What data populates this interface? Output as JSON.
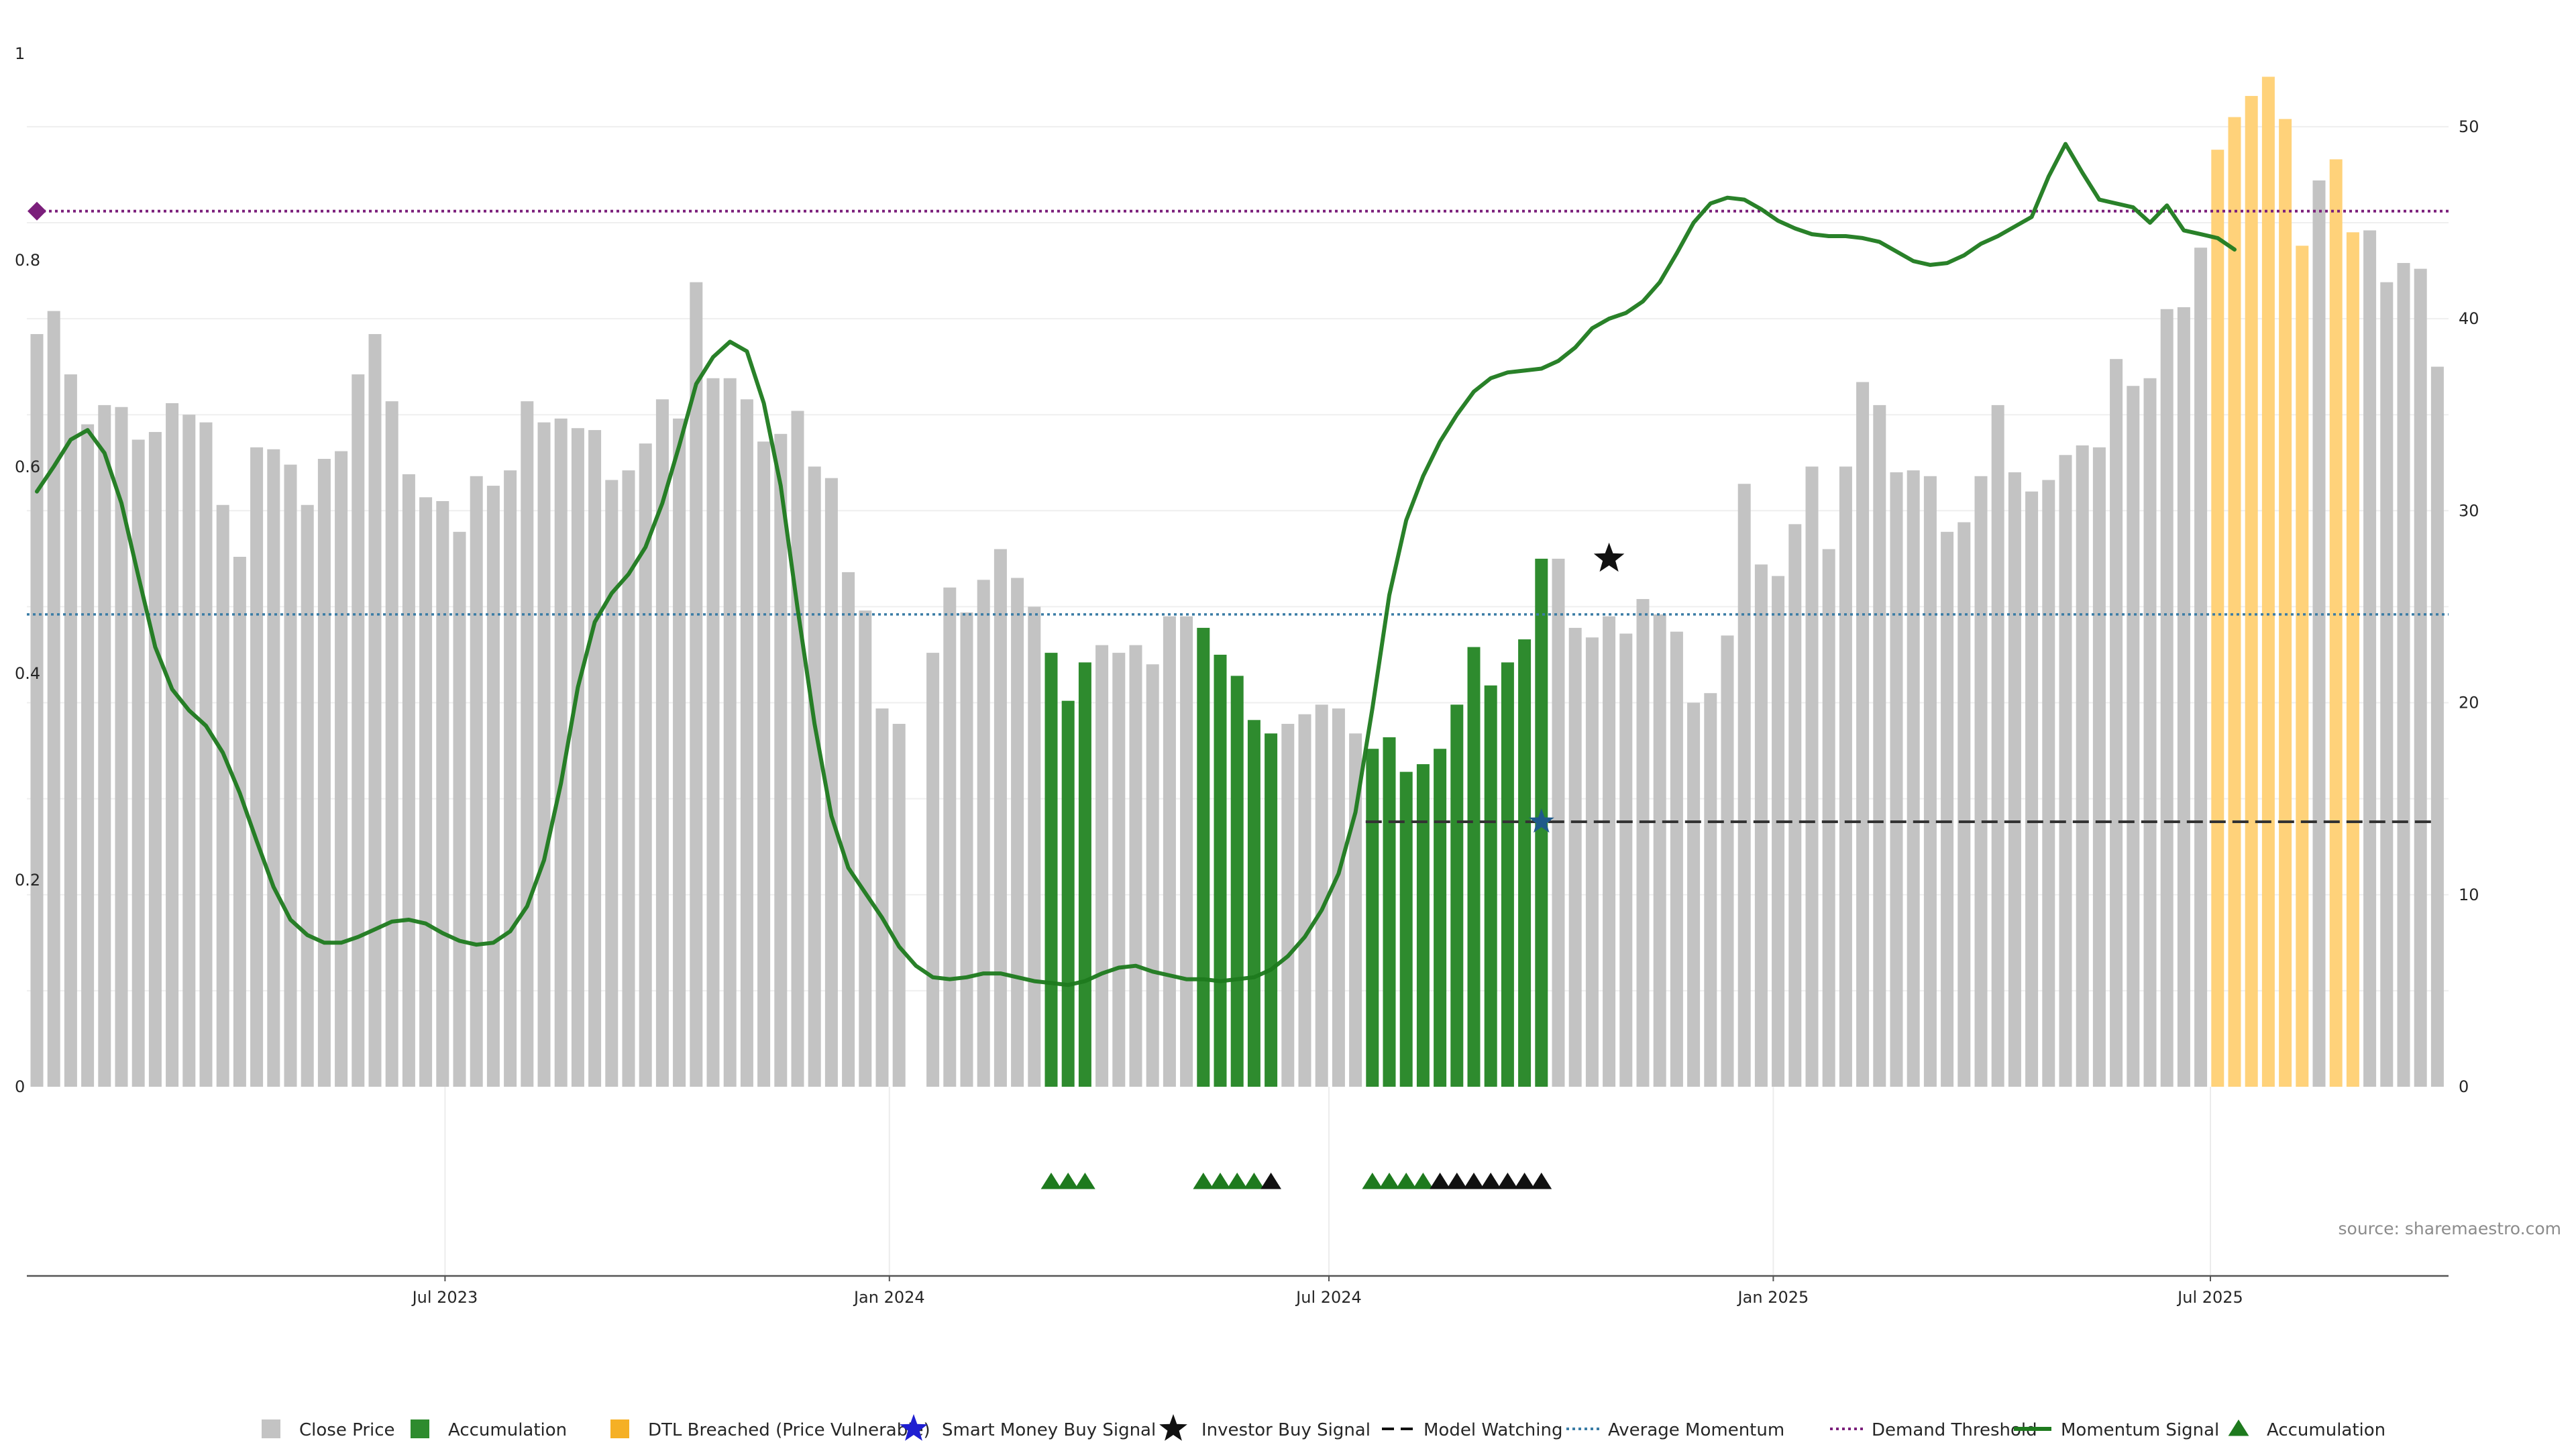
{
  "chart_data": {
    "type": "bar",
    "title": "",
    "xlabel": "",
    "ylabel": "",
    "left_axis": {
      "ylim": [
        0,
        1
      ],
      "ticks": [
        {
          "value": 0,
          "label": "0"
        },
        {
          "value": 0.2,
          "label": "0.2"
        },
        {
          "value": 0.4,
          "label": "0.4"
        },
        {
          "value": 0.6,
          "label": "0.6"
        },
        {
          "value": 0.8,
          "label": "0.8"
        },
        {
          "value": 1,
          "label": "1"
        }
      ]
    },
    "right_axis": {
      "ylim": [
        0,
        55.2
      ],
      "ticks": [
        {
          "value": 0,
          "label": "0"
        },
        {
          "value": 10,
          "label": "10"
        },
        {
          "value": 20,
          "label": "20"
        },
        {
          "value": 30,
          "label": "30"
        },
        {
          "value": 40,
          "label": "40"
        },
        {
          "value": 50,
          "label": "50"
        }
      ]
    },
    "x_axis": {
      "start": "2023-01-13",
      "interval": "weekly",
      "ticks": [
        "Jul 2023",
        "Jan 2024",
        "Jul 2024",
        "Jan 2025",
        "Jul 2025"
      ]
    },
    "grid": true,
    "legend_placement": "bottom-center",
    "colors": {
      "close": "#c3c3c3",
      "accumulation": "#2e8b2e",
      "dtl": "#ffd27a",
      "momentum": "#1e7a1e",
      "avg_momentum": "#3a7ca5",
      "demand": "#7b1f7b",
      "watching": "#333333",
      "investor": "#111111"
    },
    "series": [
      {
        "name": "Close Price",
        "values": [
          39.2,
          40.4,
          37.1,
          34.5,
          35.5,
          35.4,
          33.7,
          34.1,
          35.6,
          35.0,
          34.6,
          30.3,
          27.6,
          33.3,
          33.2,
          32.4,
          30.3,
          32.7,
          33.1,
          37.1,
          39.2,
          35.7,
          31.9,
          30.7,
          30.5,
          28.9,
          31.8,
          31.3,
          32.1,
          35.7,
          34.6,
          34.8,
          34.3,
          34.2,
          31.6,
          32.1,
          33.5,
          35.8,
          34.8,
          41.9,
          36.9,
          36.9,
          35.8,
          33.6,
          34.0,
          35.2,
          32.3,
          31.7,
          26.8,
          24.8,
          19.7,
          18.9,
          null,
          22.6,
          26.0,
          24.7,
          26.4,
          28.0,
          26.5,
          25.0,
          22.6,
          20.1,
          22.1,
          23.0,
          22.6,
          23.0,
          22.0,
          24.5,
          24.5,
          23.9,
          22.5,
          21.4,
          19.1,
          18.4,
          18.9,
          19.4,
          19.9,
          19.7,
          18.4,
          17.6,
          18.2,
          16.4,
          16.8,
          17.6,
          19.9,
          22.9,
          20.9,
          22.1,
          23.3,
          27.5,
          27.5,
          23.9,
          23.4,
          24.5,
          23.6,
          25.4,
          24.6,
          23.7,
          20.0,
          20.5,
          23.5,
          31.4,
          27.2,
          26.6,
          29.3,
          32.3,
          28.0,
          32.3,
          36.7,
          35.5,
          32.0,
          32.1,
          31.8,
          28.9,
          29.4,
          31.8,
          35.5,
          32.0,
          31.0,
          31.6,
          32.9,
          33.4,
          33.3,
          37.9,
          36.5,
          36.9,
          40.5,
          40.6,
          43.7,
          48.8,
          50.5,
          51.6,
          52.6,
          50.4,
          43.8,
          47.2,
          48.3,
          44.5,
          44.6,
          41.9,
          42.9,
          42.6,
          37.5
        ]
      },
      {
        "name": "Accumulation",
        "indices": [
          60,
          61,
          62,
          69,
          70,
          71,
          72,
          73,
          79,
          80,
          81,
          82,
          83,
          84,
          85,
          86,
          87,
          88,
          89
        ]
      },
      {
        "name": "DTL Breached (Price Vulnerable)",
        "indices": [
          129,
          130,
          131,
          132,
          133,
          134,
          136,
          137
        ]
      },
      {
        "name": "Momentum Signal",
        "values": [
          31.0,
          32.3,
          33.7,
          34.2,
          33.0,
          30.4,
          26.6,
          22.9,
          20.7,
          19.6,
          18.8,
          17.4,
          15.3,
          12.8,
          10.4,
          8.7,
          7.9,
          7.5,
          7.5,
          7.8,
          8.2,
          8.6,
          8.7,
          8.5,
          8.0,
          7.6,
          7.4,
          7.5,
          8.1,
          9.4,
          11.8,
          15.8,
          20.8,
          24.2,
          25.7,
          26.7,
          28.1,
          30.4,
          33.4,
          36.6,
          38.0,
          38.8,
          38.3,
          35.6,
          31.3,
          24.9,
          18.9,
          14.1,
          11.4,
          10.1,
          8.8,
          7.3,
          6.3,
          5.7,
          5.6,
          5.7,
          5.9,
          5.9,
          5.7,
          5.5,
          5.4,
          5.3,
          5.5,
          5.9,
          6.2,
          6.3,
          6.0,
          5.8,
          5.6,
          5.6,
          5.5,
          5.6,
          5.7,
          6.1,
          6.8,
          7.8,
          9.2,
          11.1,
          14.3,
          19.7,
          25.6,
          29.5,
          31.8,
          33.6,
          35.0,
          36.2,
          36.9,
          37.2,
          37.3,
          37.4,
          37.8,
          38.5,
          39.5,
          40.0,
          40.3,
          40.9,
          41.9,
          43.4,
          45.0,
          46.0,
          46.3,
          46.2,
          45.7,
          45.1,
          44.7,
          44.4,
          44.3,
          44.3,
          44.2,
          44.0,
          43.5,
          43.0,
          42.8,
          42.9,
          43.3,
          43.9,
          44.3,
          44.8,
          45.3,
          47.4,
          49.1,
          47.6,
          46.2,
          46.0,
          45.8,
          45.0,
          45.9,
          44.6,
          44.4,
          44.2,
          43.6
        ]
      }
    ],
    "average_momentum": 24.6,
    "demand_threshold": 45.6,
    "model_watching": {
      "start_index": 79,
      "value": 13.8
    },
    "investor_buy_signal": {
      "index": 93,
      "value": 27.5
    },
    "smart_money_buy_signal": {
      "index": 89,
      "value": 13.8
    },
    "markers": {
      "accumulation": [
        60,
        61,
        62,
        69,
        70,
        71,
        72,
        79,
        80,
        81,
        82
      ],
      "investor": [
        73,
        83,
        84,
        85,
        86,
        87,
        88,
        89
      ]
    },
    "legend": [
      {
        "label": "Close Price",
        "kind": "square",
        "color": "#c3c3c3"
      },
      {
        "label": "Accumulation",
        "kind": "square",
        "color": "#2e8b2e"
      },
      {
        "label": "DTL Breached (Price Vulnerable)",
        "kind": "square",
        "color": "#f5b025"
      },
      {
        "label": "Smart Money Buy Signal",
        "kind": "star",
        "color": "#1f1fd1"
      },
      {
        "label": "Investor Buy Signal",
        "kind": "star",
        "color": "#111111"
      },
      {
        "label": "Model Watching",
        "kind": "dash",
        "color": "#111111"
      },
      {
        "label": "Average Momentum",
        "kind": "dot",
        "color": "#3a7ca5"
      },
      {
        "label": "Demand Threshold",
        "kind": "dot",
        "color": "#7b1f7b"
      },
      {
        "label": "Momentum Signal",
        "kind": "line",
        "color": "#1e7a1e"
      },
      {
        "label": "Accumulation",
        "kind": "triangle",
        "color": "#1e7a1e"
      }
    ],
    "source": "source: sharemaestro.com"
  }
}
